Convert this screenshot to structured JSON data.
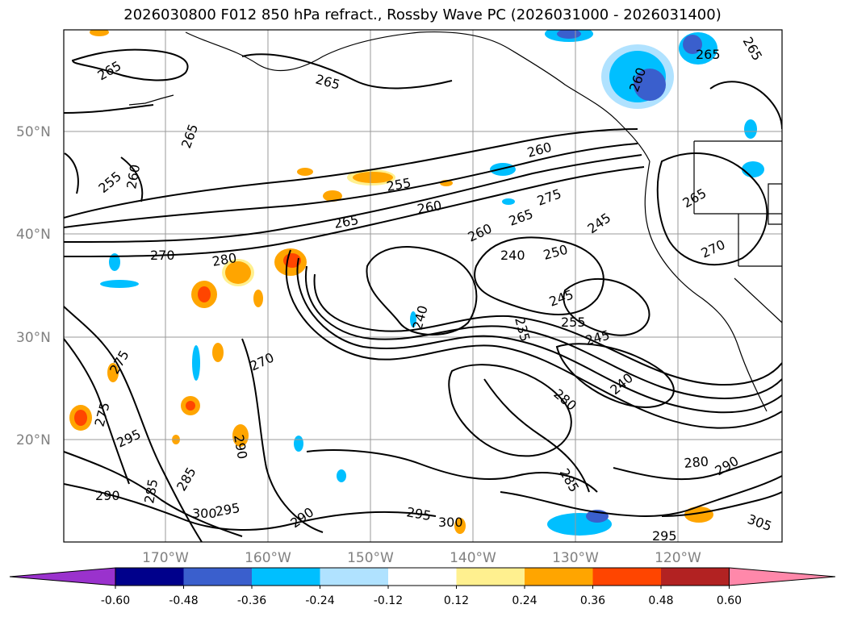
{
  "title": "2026030800 F012 850 hPa refract., Rossby Wave PC (2026031000 - 2026031400)",
  "lat_labels": [
    "50°N",
    "40°N",
    "30°N",
    "20°N"
  ],
  "lon_labels": [
    "170°W",
    "160°W",
    "150°W",
    "140°W",
    "130°W",
    "120°W"
  ],
  "contour_labels": [
    "265",
    "265",
    "265",
    "265",
    "265",
    "255",
    "260",
    "255",
    "260",
    "270",
    "280",
    "265",
    "260",
    "275",
    "265",
    "260",
    "240",
    "250",
    "245",
    "245",
    "255",
    "245",
    "240",
    "240",
    "235",
    "280",
    "270",
    "275",
    "275",
    "295",
    "290",
    "290",
    "285",
    "285",
    "300",
    "295",
    "300",
    "295",
    "280",
    "285",
    "305",
    "290",
    "295",
    "290",
    "260",
    "265",
    "270"
  ],
  "colorbar": {
    "tick_labels": [
      "-0.60",
      "-0.48",
      "-0.36",
      "-0.24",
      "-0.12",
      "0.12",
      "0.24",
      "0.36",
      "0.48",
      "0.60"
    ],
    "colors": [
      "#9a32cd",
      "#00008b",
      "#3a5fcd",
      "#00bfff",
      "#b0e2ff",
      "#ffffff",
      "#fff08f",
      "#ffa500",
      "#ff4500",
      "#b22222",
      "#ff88aa"
    ]
  }
}
